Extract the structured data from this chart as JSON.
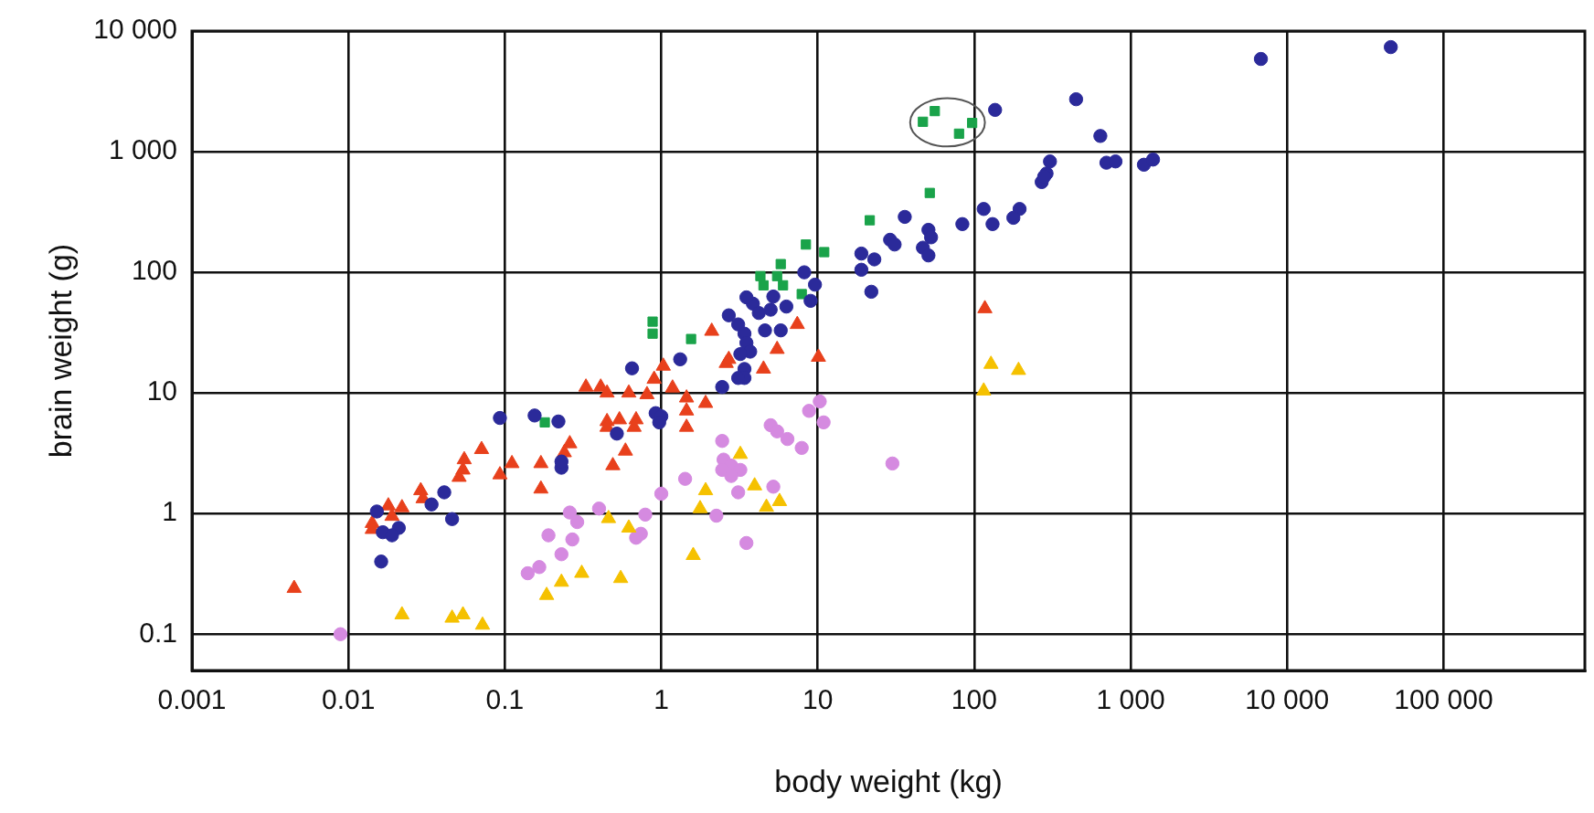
{
  "chart_data": {
    "type": "scatter",
    "xlabel": "body weight (kg)",
    "ylabel": "brain weight (g)",
    "log": "xy",
    "grid": true,
    "legend": false,
    "xlim": [
      0.001,
      800000
    ],
    "ylim": [
      0.05,
      10000
    ],
    "xticks": [
      0.001,
      0.01,
      0.1,
      1,
      10,
      100,
      {
        "value": 1000,
        "label": "1 000"
      },
      {
        "value": 10000,
        "label": "10 000"
      },
      {
        "value": 100000,
        "label": "100 000"
      }
    ],
    "yticks": [
      0.1,
      1,
      10,
      100,
      {
        "value": 1000,
        "label": "1 000"
      },
      {
        "value": 10000,
        "label": "10 000"
      }
    ],
    "series": [
      {
        "color": "#2b2a9a",
        "marker": "circle",
        "x": [
          136,
          305,
          290,
          270,
          195,
          178,
          115,
          131,
          84,
          51,
          53,
          47,
          51,
          36,
          29,
          31,
          19,
          23,
          19,
          22,
          8.2,
          9.6,
          9.0,
          5.2,
          6.3,
          5.0,
          3.85,
          3.5,
          4.2,
          2.7,
          3.1,
          3.4,
          4.6,
          5.8,
          3.5,
          3.7,
          3.2,
          1.32,
          0.65,
          3.4,
          3.4,
          3.1,
          2.45,
          0.92,
          1.0,
          0.97,
          0.155,
          0.22,
          0.52,
          0.23,
          0.23,
          0.093,
          0.041,
          0.034,
          0.0152,
          0.046,
          0.0166,
          0.021,
          0.019,
          0.0162,
          448,
          640,
          700,
          800,
          1215,
          1390,
          6800,
          46000,
          280
        ],
        "values": [
          2220,
          830,
          660,
          560,
          335,
          283,
          335,
          251,
          251,
          225,
          195,
          160,
          138,
          288,
          186,
          170,
          143,
          128,
          105,
          69,
          100,
          79,
          58,
          63,
          52,
          49,
          55,
          62,
          46,
          44,
          37,
          31,
          33,
          33,
          26,
          22,
          21,
          19,
          16,
          15.8,
          13.3,
          13.3,
          11.2,
          6.8,
          6.4,
          5.7,
          6.5,
          5.8,
          4.6,
          2.4,
          2.7,
          6.2,
          1.5,
          1.19,
          1.04,
          0.9,
          0.7,
          0.76,
          0.66,
          0.4,
          2720,
          1350,
          810,
          830,
          780,
          860,
          5870,
          7360,
          620
        ]
      },
      {
        "color": "#1aa34a",
        "marker": "square",
        "x": [
          52,
          21.5,
          8.4,
          11,
          5.8,
          4.3,
          5.5,
          6.0,
          4.5,
          7.9,
          0.88,
          0.88,
          1.55,
          0.18,
          47,
          56,
          97,
          80
        ],
        "values": [
          455,
          270,
          170,
          147,
          117,
          93,
          93,
          78,
          78,
          66,
          39,
          31,
          28,
          5.7,
          1770,
          2170,
          1730,
          1410
        ]
      },
      {
        "color": "#e8401c",
        "marker": "triangle",
        "x": [
          0.0045,
          0.0142,
          0.0142,
          0.018,
          0.019,
          0.022,
          0.029,
          0.03,
          0.051,
          0.054,
          0.055,
          0.071,
          0.093,
          0.111,
          0.17,
          0.17,
          0.24,
          0.26,
          0.33,
          0.41,
          0.45,
          0.62,
          0.81,
          1.18,
          1.03,
          0.9,
          1.45,
          1.92,
          1.45,
          0.45,
          0.54,
          0.69,
          0.67,
          0.45,
          1.45,
          0.59,
          0.49,
          2.6,
          4.5,
          5.5,
          10.1,
          2.1,
          7.4,
          117,
          2.7
        ],
        "values": [
          0.24,
          0.83,
          0.74,
          1.16,
          0.95,
          1.12,
          1.55,
          1.33,
          2.0,
          2.3,
          2.8,
          3.4,
          2.1,
          2.6,
          2.6,
          1.6,
          3.2,
          3.8,
          11.2,
          11.2,
          10,
          10,
          9.7,
          11,
          16.7,
          13,
          9.1,
          8.2,
          7.1,
          5.8,
          6.0,
          6.0,
          5.2,
          5.2,
          5.2,
          3.3,
          2.5,
          17.6,
          15.8,
          23,
          19.8,
          32.5,
          37,
          50,
          19
        ]
      },
      {
        "color": "#f5c100",
        "marker": "triangle",
        "x": [
          3.2,
          1.92,
          3.95,
          1.77,
          4.7,
          5.7,
          0.46,
          0.62,
          1.6,
          0.31,
          0.23,
          0.55,
          0.185,
          128,
          192,
          115,
          0.022,
          0.046,
          0.054,
          0.072
        ],
        "values": [
          3.1,
          1.55,
          1.7,
          1.1,
          1.13,
          1.26,
          0.91,
          0.76,
          0.45,
          0.32,
          0.27,
          0.29,
          0.21,
          17.3,
          15.4,
          10.4,
          0.145,
          0.136,
          0.145,
          0.119
        ]
      },
      {
        "color": "#d58ae0",
        "marker": "circle",
        "x": [
          10.3,
          8.8,
          10.9,
          5.0,
          5.5,
          6.4,
          7.9,
          30,
          2.45,
          2.5,
          2.8,
          2.45,
          3.2,
          2.8,
          1.42,
          3.1,
          5.2,
          1.0,
          2.25,
          3.5,
          0.79,
          0.74,
          0.69,
          0.4,
          0.26,
          0.29,
          0.19,
          0.27,
          0.23,
          0.166,
          0.14,
          0.0089
        ],
        "values": [
          8.5,
          7.1,
          5.7,
          5.4,
          4.8,
          4.15,
          3.5,
          2.6,
          4.0,
          2.8,
          2.5,
          2.3,
          2.3,
          2.05,
          1.94,
          1.5,
          1.67,
          1.46,
          0.96,
          0.57,
          0.98,
          0.68,
          0.63,
          1.1,
          1.02,
          0.85,
          0.66,
          0.61,
          0.46,
          0.36,
          0.32,
          0.1
        ]
      }
    ]
  }
}
